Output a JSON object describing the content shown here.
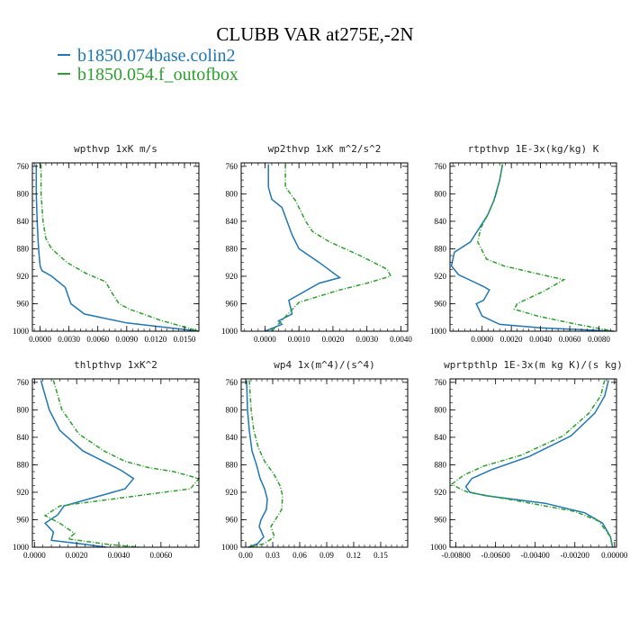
{
  "title": "CLUBB VAR at275E,-2N",
  "legend": [
    {
      "label": "b1850.074base.colin2",
      "color": "#1f77b4"
    },
    {
      "label": "b1850.054.f_outofbox",
      "color": "#2ca02c"
    }
  ],
  "chart_data": [
    {
      "type": "line",
      "title": "wpthvp  1xK m/s",
      "xlim": [
        -0.0008,
        0.0165
      ],
      "ylim": [
        1000,
        755
      ],
      "xticks": [
        0.0,
        0.003,
        0.006,
        0.009,
        0.012,
        0.015
      ],
      "xtick_labels": [
        "0.0000",
        "0.0030",
        "0.0060",
        "0.0090",
        "0.0120",
        "0.0150"
      ],
      "yticks": [
        760,
        800,
        840,
        880,
        920,
        960,
        1000
      ],
      "series": [
        {
          "name": "b1850.074base.colin2",
          "color": "#1f77b4",
          "x": [
            -0.0004,
            -0.0004,
            -0.0003,
            -0.0002,
            -0.0001,
            0.0,
            0.0002,
            0.0012,
            0.0026,
            0.0032,
            0.0046,
            0.009,
            0.0165
          ],
          "y": [
            757,
            800,
            840,
            870,
            890,
            905,
            912,
            920,
            936,
            960,
            975,
            988,
            1000
          ]
        },
        {
          "name": "b1850.054.f_outofbox",
          "color": "#2ca02c",
          "x": [
            0.0001,
            0.0001,
            0.0003,
            0.0006,
            0.0012,
            0.0028,
            0.0048,
            0.0068,
            0.0075,
            0.0082,
            0.0093,
            0.0125,
            0.0165
          ],
          "y": [
            757,
            800,
            840,
            865,
            880,
            900,
            916,
            928,
            945,
            960,
            968,
            984,
            1000
          ]
        }
      ]
    },
    {
      "type": "line",
      "title": "wp2thvp  1xK m^2/s^2",
      "xlim": [
        -0.0007,
        0.0042
      ],
      "ylim": [
        1000,
        755
      ],
      "xticks": [
        0.0,
        0.001,
        0.002,
        0.003,
        0.004
      ],
      "xtick_labels": [
        "0.0000",
        "0.0010",
        "0.0020",
        "0.0030",
        "0.0040"
      ],
      "yticks": [
        760,
        800,
        840,
        880,
        920,
        960,
        1000
      ],
      "series": [
        {
          "name": "b1850.074base.colin2",
          "color": "#1f77b4",
          "x": [
            0.0001,
            0.0001,
            0.0002,
            0.0005,
            0.0008,
            0.001,
            0.0016,
            0.0022,
            0.0016,
            0.0007,
            0.0008,
            0.0004,
            0.0005,
            0.0
          ],
          "y": [
            757,
            790,
            808,
            820,
            860,
            880,
            900,
            922,
            930,
            955,
            975,
            985,
            990,
            1000
          ]
        },
        {
          "name": "b1850.054.f_outofbox",
          "color": "#2ca02c",
          "x": [
            0.0006,
            0.0006,
            0.0009,
            0.0012,
            0.0014,
            0.0019,
            0.0028,
            0.0036,
            0.0037,
            0.003,
            0.0022,
            0.001,
            0.0002
          ],
          "y": [
            757,
            790,
            810,
            840,
            855,
            870,
            890,
            910,
            920,
            930,
            940,
            958,
            1000
          ]
        }
      ]
    },
    {
      "type": "line",
      "title": "rtpthvp  1E-3x(kg/kg) K",
      "xlim": [
        -0.0022,
        0.0092
      ],
      "ylim": [
        1000,
        755
      ],
      "xticks": [
        0.0,
        0.002,
        0.004,
        0.006,
        0.008
      ],
      "xtick_labels": [
        "0.0000",
        "0.0020",
        "0.0040",
        "0.0060",
        "0.0080"
      ],
      "yticks": [
        760,
        800,
        840,
        880,
        920,
        960,
        1000
      ],
      "series": [
        {
          "name": "b1850.074base.colin2",
          "color": "#1f77b4",
          "x": [
            0.0014,
            0.0012,
            0.0008,
            0.0004,
            -0.0002,
            -0.0008,
            -0.0019,
            -0.0021,
            -0.0016,
            -0.0006,
            0.0001,
            0.0005,
            0.0001,
            -0.0004,
            0.0,
            0.0012,
            0.004,
            0.009
          ],
          "y": [
            757,
            780,
            810,
            830,
            850,
            870,
            885,
            905,
            918,
            928,
            935,
            940,
            955,
            960,
            978,
            990,
            995,
            1000
          ]
        },
        {
          "name": "b1850.054.f_outofbox",
          "color": "#2ca02c",
          "x": [
            0.0014,
            0.0012,
            0.0009,
            0.0004,
            -0.0001,
            -0.0003,
            0.0003,
            0.0015,
            0.0035,
            0.0056,
            0.0042,
            0.0024,
            0.0022,
            0.0038,
            0.0065,
            0.009
          ],
          "y": [
            757,
            780,
            805,
            830,
            850,
            870,
            895,
            905,
            915,
            925,
            942,
            960,
            968,
            978,
            990,
            1000
          ]
        }
      ]
    },
    {
      "type": "line",
      "title": "thlpthvp  1xK^2",
      "xlim": [
        -0.0001,
        0.0078
      ],
      "ylim": [
        1000,
        755
      ],
      "xticks": [
        0.0,
        0.002,
        0.004,
        0.006
      ],
      "xtick_labels": [
        "0.0000",
        "0.0020",
        "0.0040",
        "0.0060"
      ],
      "yticks": [
        760,
        800,
        840,
        880,
        920,
        960,
        1000
      ],
      "series": [
        {
          "name": "b1850.074base.colin2",
          "color": "#1f77b4",
          "x": [
            0.0003,
            0.0007,
            0.0012,
            0.0023,
            0.0034,
            0.0041,
            0.0047,
            0.0043,
            0.0014,
            0.0011,
            0.0005,
            0.0009,
            0.0008,
            0.0022,
            0.0034
          ],
          "y": [
            757,
            800,
            830,
            860,
            877,
            888,
            900,
            915,
            940,
            953,
            965,
            978,
            990,
            995,
            1000
          ]
        },
        {
          "name": "b1850.054.f_outofbox",
          "color": "#2ca02c",
          "x": [
            0.0009,
            0.0013,
            0.0021,
            0.0033,
            0.0043,
            0.0054,
            0.0066,
            0.0078,
            0.0074,
            0.0012,
            0.0005,
            0.0012,
            0.0019,
            0.0016,
            0.0035,
            0.005
          ],
          "y": [
            757,
            800,
            835,
            860,
            875,
            884,
            890,
            900,
            915,
            940,
            954,
            965,
            980,
            988,
            996,
            1000
          ]
        }
      ]
    },
    {
      "type": "line",
      "title": "wp4  1x(m^4)/(s^4)",
      "xlim": [
        -0.005,
        0.18
      ],
      "ylim": [
        1000,
        755
      ],
      "xticks": [
        0.0,
        0.03,
        0.06,
        0.09,
        0.12,
        0.15
      ],
      "xtick_labels": [
        "0.00",
        "0.03",
        "0.06",
        "0.09",
        "0.12",
        "0.15"
      ],
      "yticks": [
        760,
        800,
        840,
        880,
        920,
        960,
        1000
      ],
      "series": [
        {
          "name": "b1850.074base.colin2",
          "color": "#1f77b4",
          "x": [
            0.001,
            0.002,
            0.004,
            0.007,
            0.012,
            0.016,
            0.021,
            0.024,
            0.023,
            0.017,
            0.015,
            0.02,
            0.013,
            0.003
          ],
          "y": [
            757,
            800,
            830,
            860,
            880,
            900,
            915,
            930,
            945,
            960,
            970,
            985,
            995,
            1000
          ]
        },
        {
          "name": "b1850.054.f_outofbox",
          "color": "#2ca02c",
          "x": [
            0.004,
            0.006,
            0.009,
            0.014,
            0.021,
            0.031,
            0.038,
            0.041,
            0.04,
            0.033,
            0.028,
            0.032,
            0.02,
            0.003
          ],
          "y": [
            757,
            800,
            830,
            855,
            875,
            893,
            910,
            925,
            945,
            960,
            970,
            985,
            995,
            1000
          ]
        }
      ]
    },
    {
      "type": "line",
      "title": "wprtpthlp  1E-3x(m kg K)/(s kg)",
      "xlim": [
        -0.0083,
        0.0001
      ],
      "ylim": [
        1000,
        755
      ],
      "xticks": [
        -0.008,
        -0.006,
        -0.004,
        -0.002,
        0.0
      ],
      "xtick_labels": [
        "-0.00800",
        "-0.00600",
        "-0.00400",
        "-0.00200",
        "0.00000"
      ],
      "yticks": [
        760,
        800,
        840,
        880,
        920,
        960,
        1000
      ],
      "series": [
        {
          "name": "b1850.074base.colin2",
          "color": "#1f77b4",
          "x": [
            -0.0003,
            -0.0005,
            -0.001,
            -0.0022,
            -0.0043,
            -0.0062,
            -0.0072,
            -0.0075,
            -0.0073,
            -0.0065,
            -0.0035,
            -0.0015,
            -0.0006,
            -0.0002,
            -0.0001
          ],
          "y": [
            757,
            780,
            805,
            838,
            868,
            887,
            900,
            912,
            920,
            925,
            936,
            950,
            965,
            985,
            1000
          ]
        },
        {
          "name": "b1850.054.f_outofbox",
          "color": "#2ca02c",
          "x": [
            -0.0005,
            -0.0007,
            -0.0013,
            -0.0026,
            -0.0047,
            -0.0066,
            -0.0076,
            -0.0082,
            -0.0078,
            -0.0074,
            -0.005,
            -0.002,
            -0.0008,
            -0.0002,
            -0.0001
          ],
          "y": [
            757,
            780,
            805,
            838,
            866,
            882,
            895,
            908,
            915,
            920,
            932,
            948,
            962,
            985,
            1000
          ]
        }
      ]
    }
  ]
}
